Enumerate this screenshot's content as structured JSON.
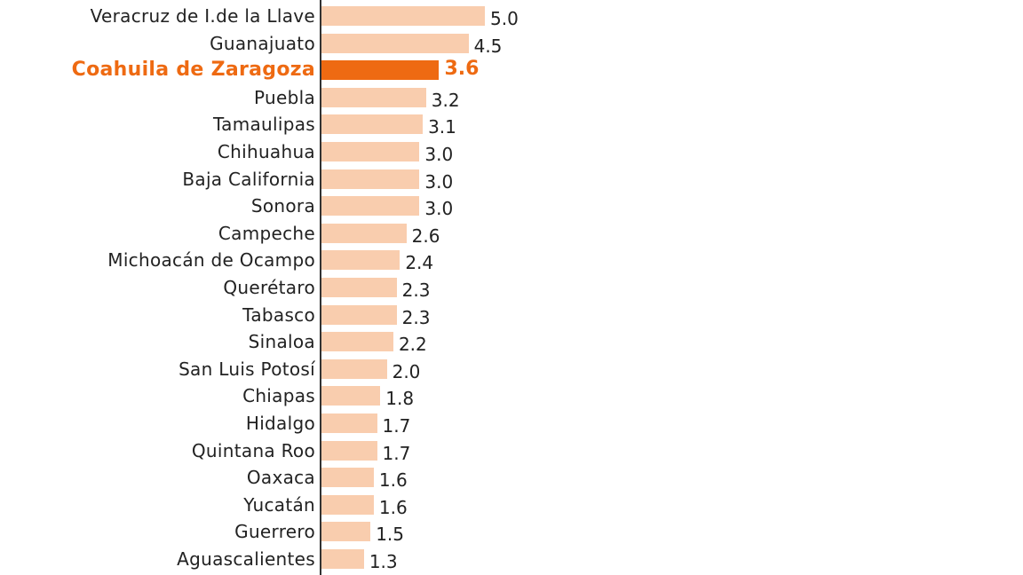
{
  "chart_data": {
    "type": "bar",
    "orientation": "horizontal",
    "title": "",
    "xlabel": "",
    "ylabel": "",
    "grid": false,
    "legend": null,
    "highlight_category": "Coahuila de Zaragoza",
    "colors": {
      "default_bar": "#F9CDAE",
      "highlight_bar": "#EE6A12",
      "axis": "#333333",
      "text": "#222222"
    },
    "categories": [
      "Veracruz de I.de la Llave",
      "Guanajuato",
      "Coahuila de Zaragoza",
      "Puebla",
      "Tamaulipas",
      "Chihuahua",
      "Baja California",
      "Sonora",
      "Campeche",
      "Michoacán de Ocampo",
      "Querétaro",
      "Tabasco",
      "Sinaloa",
      "San Luis Potosí",
      "Chiapas",
      "Hidalgo",
      "Quintana Roo",
      "Oaxaca",
      "Yucatán",
      "Guerrero",
      "Aguascalientes"
    ],
    "values": [
      5.0,
      4.5,
      3.6,
      3.2,
      3.1,
      3.0,
      3.0,
      3.0,
      2.6,
      2.4,
      2.3,
      2.3,
      2.2,
      2.0,
      1.8,
      1.7,
      1.7,
      1.6,
      1.6,
      1.5,
      1.3
    ],
    "value_labels": [
      "5.0",
      "4.5",
      "3.6",
      "3.2",
      "3.1",
      "3.0",
      "3.0",
      "3.0",
      "2.6",
      "2.4",
      "2.3",
      "2.3",
      "2.2",
      "2.0",
      "1.8",
      "1.7",
      "1.7",
      "1.6",
      "1.6",
      "1.5",
      "1.3"
    ],
    "xlim": [
      0,
      5.0
    ]
  }
}
